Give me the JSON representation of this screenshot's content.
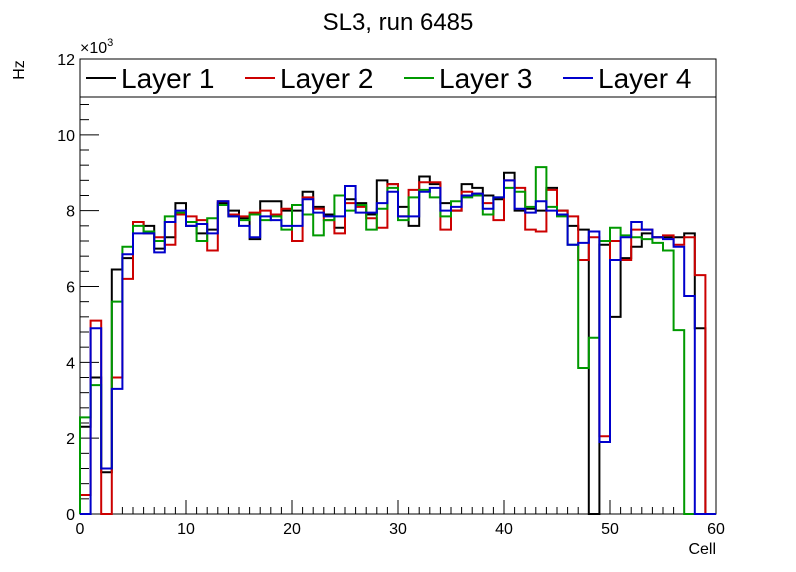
{
  "chart_data": {
    "type": "line",
    "title": "SL3, run 6485",
    "xlabel": "Cell",
    "ylabel": "Hz",
    "exponent_label": "×10",
    "exponent_power": "3",
    "xlim": [
      0,
      60
    ],
    "ylim": [
      0,
      12
    ],
    "x_ticks": [
      0,
      10,
      20,
      30,
      40,
      50,
      60
    ],
    "x_tick_labels": [
      "0",
      "10",
      "20",
      "30",
      "40",
      "50",
      "60"
    ],
    "y_ticks": [
      0,
      2,
      4,
      6,
      8,
      10,
      12
    ],
    "y_tick_labels": [
      "0",
      "2",
      "4",
      "6",
      "8",
      "10",
      "12"
    ],
    "legend_position": "top",
    "series": [
      {
        "name": "Layer 1",
        "color": "#000000",
        "values": [
          2.3,
          3.6,
          1.1,
          6.45,
          6.75,
          7.7,
          7.6,
          7.0,
          7.3,
          8.2,
          7.6,
          7.4,
          7.5,
          8.2,
          8.0,
          7.8,
          7.25,
          8.25,
          8.25,
          8.0,
          8.0,
          8.5,
          8.1,
          7.9,
          7.55,
          8.3,
          8.2,
          7.9,
          8.8,
          8.7,
          8.1,
          7.6,
          8.9,
          8.7,
          8.2,
          8.0,
          8.7,
          8.6,
          8.4,
          8.3,
          9.0,
          8.0,
          8.05,
          8.0,
          8.6,
          8.0,
          7.6,
          7.5,
          0.0,
          7.1,
          5.2,
          6.75,
          7.05,
          7.4,
          7.3,
          7.3,
          7.3,
          7.4,
          4.9,
          0.0
        ]
      },
      {
        "name": "Layer 2",
        "color": "#cc0000",
        "values": [
          0.5,
          5.1,
          0.0,
          3.6,
          6.2,
          7.7,
          7.4,
          7.3,
          7.1,
          7.9,
          7.85,
          7.75,
          6.95,
          8.25,
          7.9,
          7.85,
          7.95,
          8.0,
          7.9,
          8.05,
          7.2,
          8.35,
          8.05,
          7.75,
          7.4,
          8.2,
          8.1,
          7.8,
          7.55,
          8.7,
          7.85,
          8.55,
          8.75,
          8.75,
          7.5,
          8.0,
          8.5,
          8.45,
          8.2,
          7.75,
          8.8,
          8.6,
          7.5,
          7.45,
          8.55,
          8.0,
          7.85,
          6.7,
          7.3,
          2.05,
          7.2,
          6.7,
          7.5,
          7.5,
          7.3,
          7.35,
          7.1,
          7.3,
          6.3,
          0.0
        ]
      },
      {
        "name": "Layer 3",
        "color": "#009900",
        "values": [
          2.55,
          3.4,
          1.2,
          5.6,
          7.05,
          7.6,
          7.45,
          7.2,
          7.85,
          7.95,
          7.7,
          7.2,
          7.8,
          8.15,
          7.85,
          7.75,
          7.9,
          7.75,
          7.85,
          7.5,
          8.15,
          7.9,
          7.35,
          7.75,
          8.4,
          8.0,
          8.15,
          7.5,
          8.05,
          8.6,
          7.75,
          8.35,
          8.55,
          8.35,
          7.85,
          8.25,
          8.35,
          8.4,
          7.9,
          8.35,
          8.6,
          8.5,
          8.1,
          9.15,
          8.1,
          7.85,
          7.1,
          3.85,
          4.65,
          7.2,
          7.55,
          7.35,
          7.3,
          7.25,
          7.15,
          6.95,
          4.85,
          0.0,
          0.0,
          0.0
        ]
      },
      {
        "name": "Layer 4",
        "color": "#0000cc",
        "values": [
          0.0,
          4.9,
          1.2,
          3.3,
          6.85,
          7.4,
          7.4,
          6.9,
          7.7,
          8.0,
          7.6,
          7.65,
          7.4,
          8.25,
          7.85,
          7.6,
          7.3,
          7.85,
          7.75,
          7.6,
          7.6,
          8.3,
          7.95,
          7.85,
          7.85,
          8.65,
          7.95,
          7.95,
          8.2,
          8.5,
          7.85,
          7.85,
          8.5,
          8.6,
          8.0,
          8.1,
          8.4,
          8.45,
          8.05,
          8.35,
          8.8,
          8.05,
          7.95,
          8.25,
          8.0,
          7.9,
          7.1,
          7.15,
          7.45,
          1.9,
          6.7,
          7.3,
          7.7,
          7.5,
          7.3,
          7.25,
          7.05,
          5.75,
          0.0,
          0.0
        ]
      }
    ]
  }
}
